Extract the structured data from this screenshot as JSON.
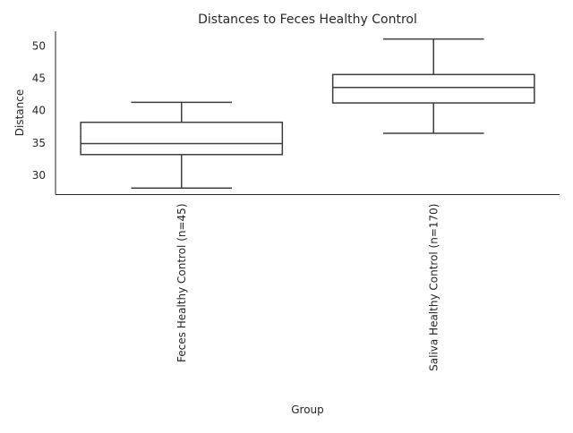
{
  "chart_data": {
    "type": "box",
    "title": "Distances to Feces Healthy Control",
    "xlabel": "Group",
    "ylabel": "Distance",
    "ylim": [
      27.0,
      52.3
    ],
    "yticks": [
      30,
      35,
      40,
      45,
      50
    ],
    "grid": false,
    "categories": [
      "Feces Healthy Control (n=45)",
      "Saliva Healthy Control (n=170)"
    ],
    "boxes": [
      {
        "whisker_low": 28.0,
        "q1": 33.2,
        "median": 34.9,
        "q3": 38.2,
        "whisker_high": 41.3
      },
      {
        "whisker_low": 36.5,
        "q1": 41.2,
        "median": 43.6,
        "q3": 45.6,
        "whisker_high": 51.1
      }
    ],
    "box_edge_color": "#3d3d3d",
    "box_face_color": "#ffffff",
    "axis_color": "#262626"
  }
}
